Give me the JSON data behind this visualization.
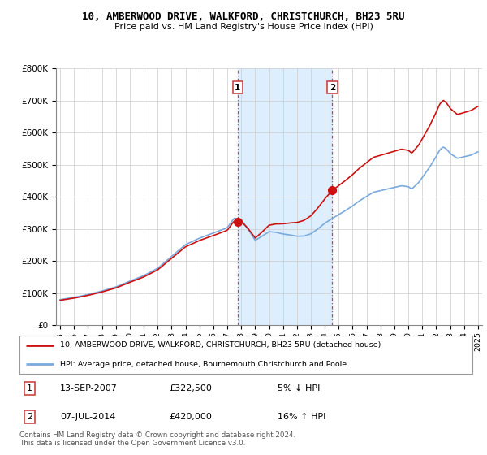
{
  "title": "10, AMBERWOOD DRIVE, WALKFORD, CHRISTCHURCH, BH23 5RU",
  "subtitle": "Price paid vs. HM Land Registry's House Price Index (HPI)",
  "legend_line1": "10, AMBERWOOD DRIVE, WALKFORD, CHRISTCHURCH, BH23 5RU (detached house)",
  "legend_line2": "HPI: Average price, detached house, Bournemouth Christchurch and Poole",
  "transaction1_date": "13-SEP-2007",
  "transaction1_price": "£322,500",
  "transaction1_hpi": "5% ↓ HPI",
  "transaction2_date": "07-JUL-2014",
  "transaction2_price": "£420,000",
  "transaction2_hpi": "16% ↑ HPI",
  "footer": "Contains HM Land Registry data © Crown copyright and database right 2024.\nThis data is licensed under the Open Government Licence v3.0.",
  "hpi_color": "#7aaadd",
  "price_color": "#cc1111",
  "marker_color": "#cc1111",
  "shaded_color": "#ddeeff",
  "dashed_color": "#cc4444",
  "background_color": "#ffffff",
  "ylim": [
    0,
    800000
  ],
  "yticks": [
    0,
    100000,
    200000,
    300000,
    400000,
    500000,
    600000,
    700000,
    800000
  ],
  "t1_year": 2007.75,
  "t2_year": 2014.54,
  "price_t1": 322500,
  "price_t2": 420000
}
